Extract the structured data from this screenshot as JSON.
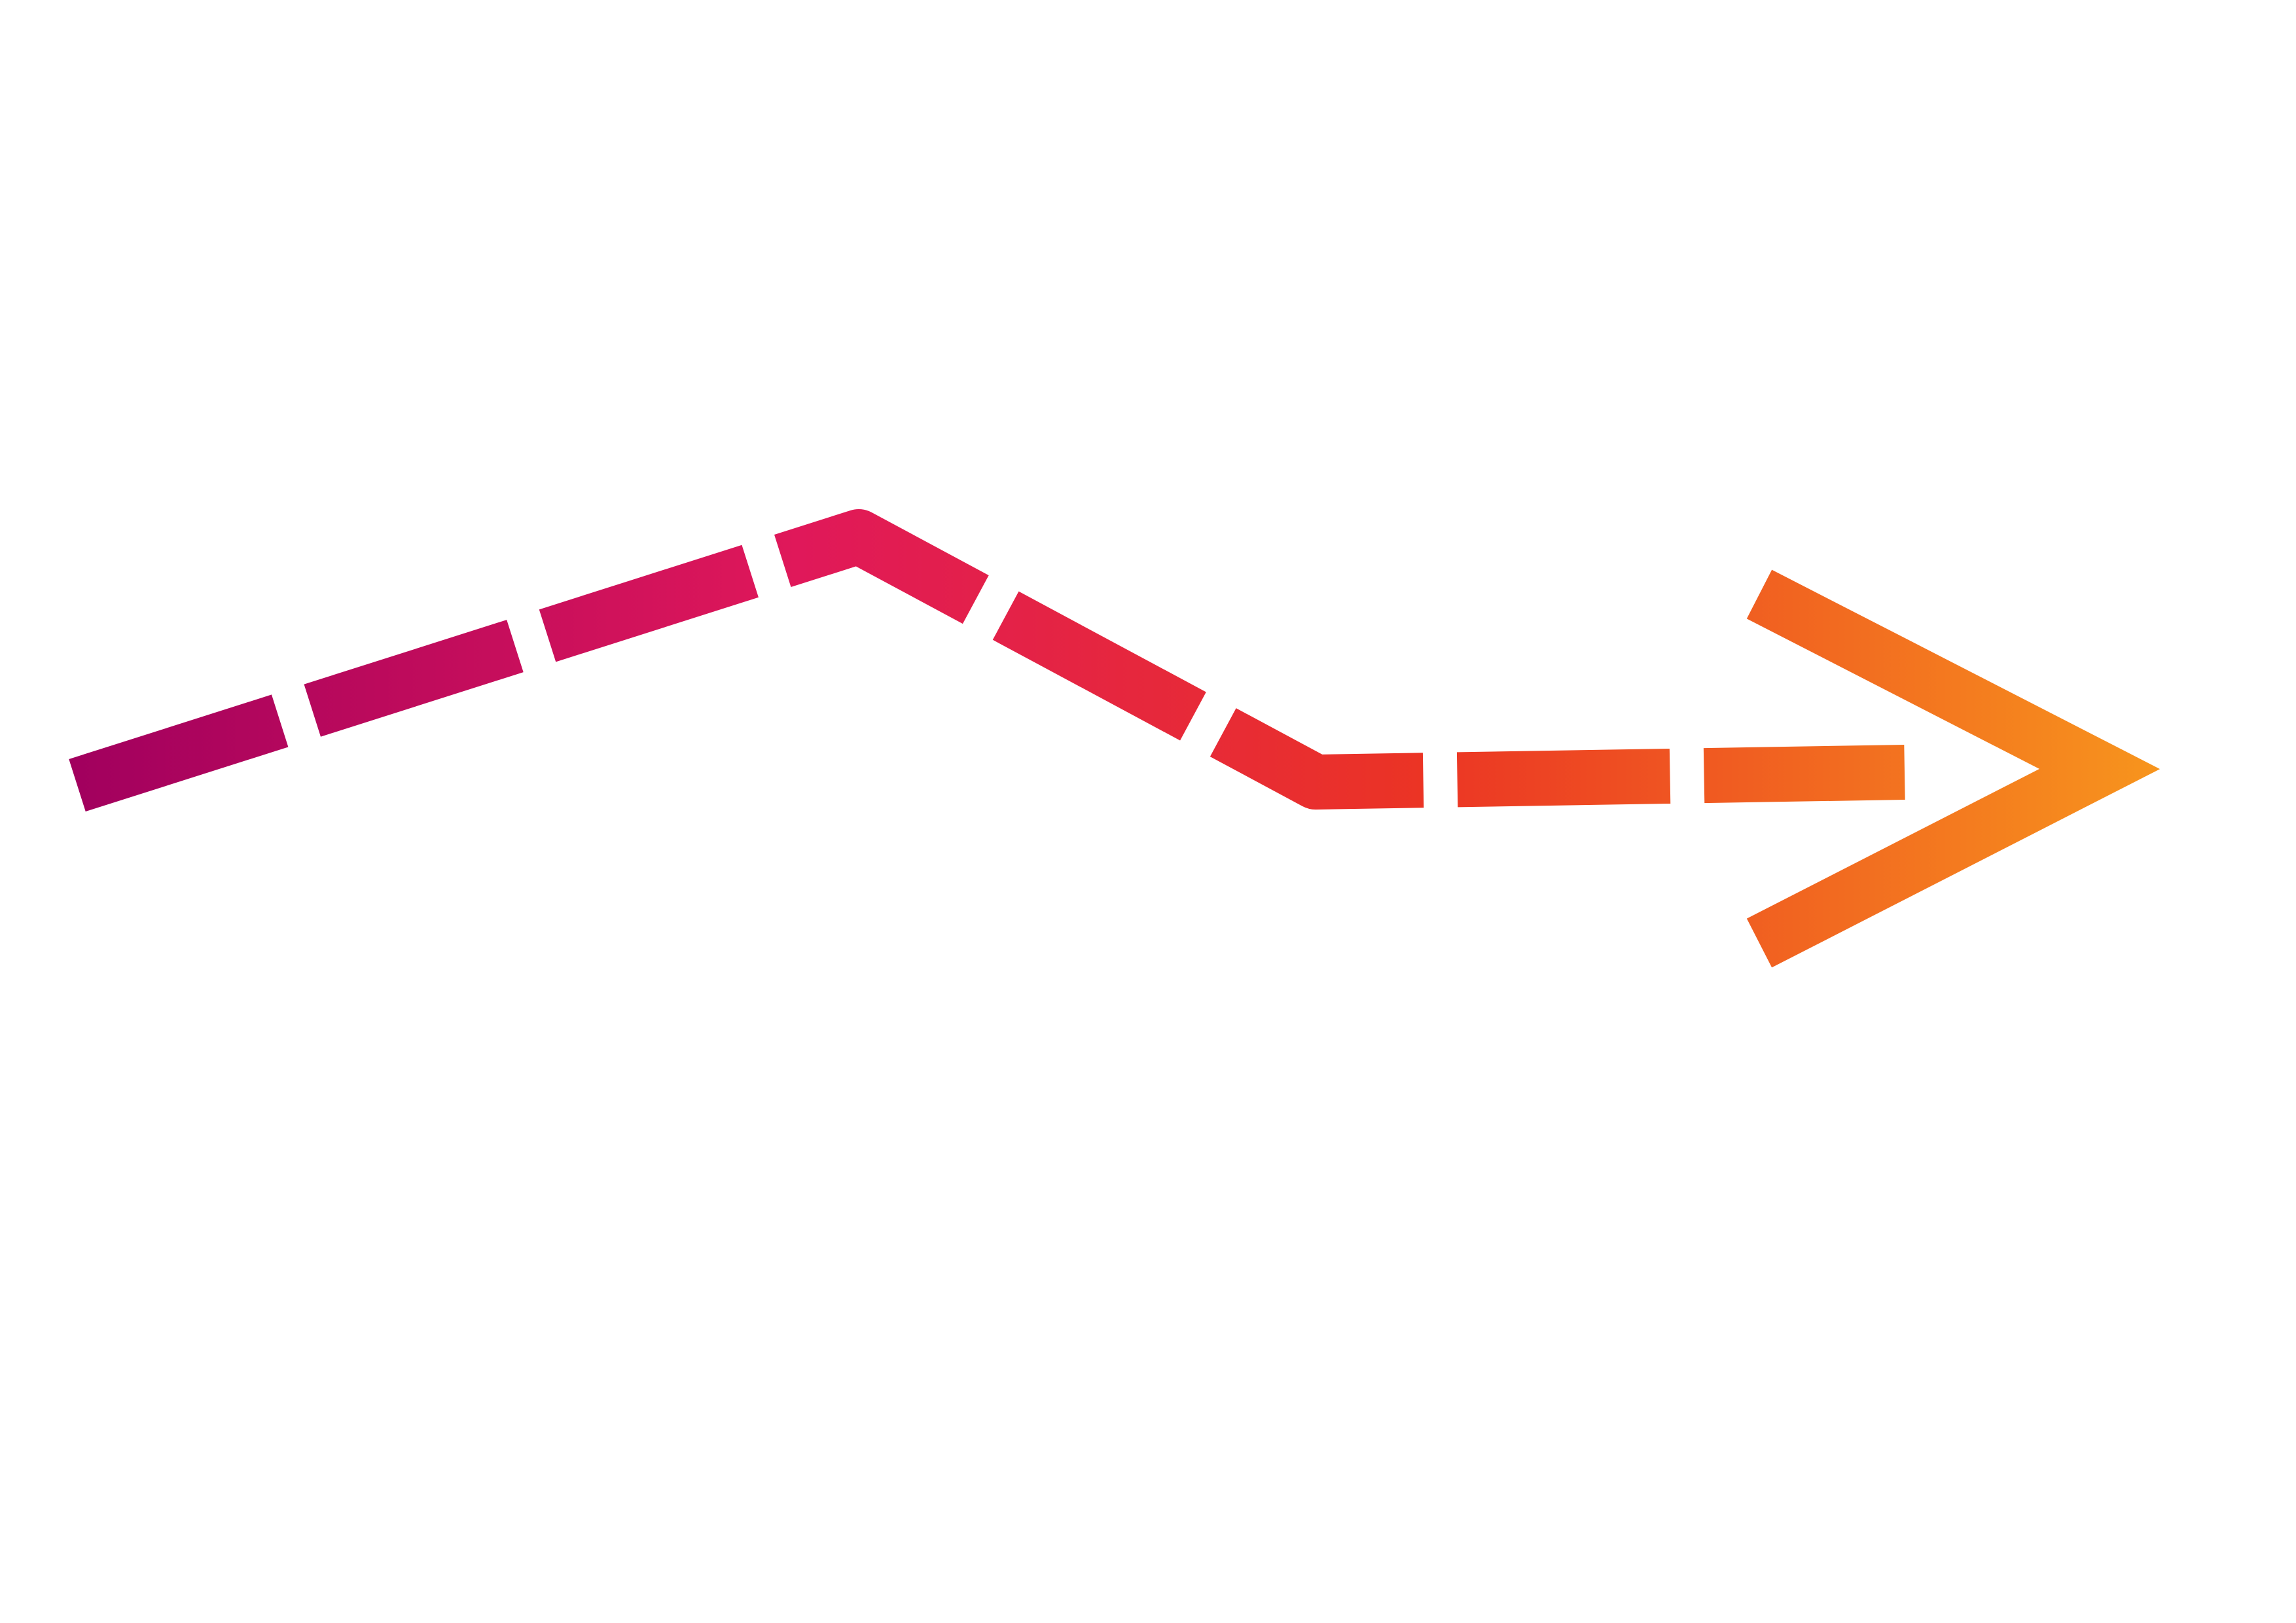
{
  "graphic": {
    "icon": "dashed-zigzag-arrow-icon",
    "gradient_stops": [
      {
        "offset": 0.0,
        "color": "#A1005E"
      },
      {
        "offset": 0.35,
        "color": "#E0185A"
      },
      {
        "offset": 0.65,
        "color": "#EB3424"
      },
      {
        "offset": 1.0,
        "color": "#F7941D"
      }
    ],
    "background_color": "#FFFFFF"
  }
}
